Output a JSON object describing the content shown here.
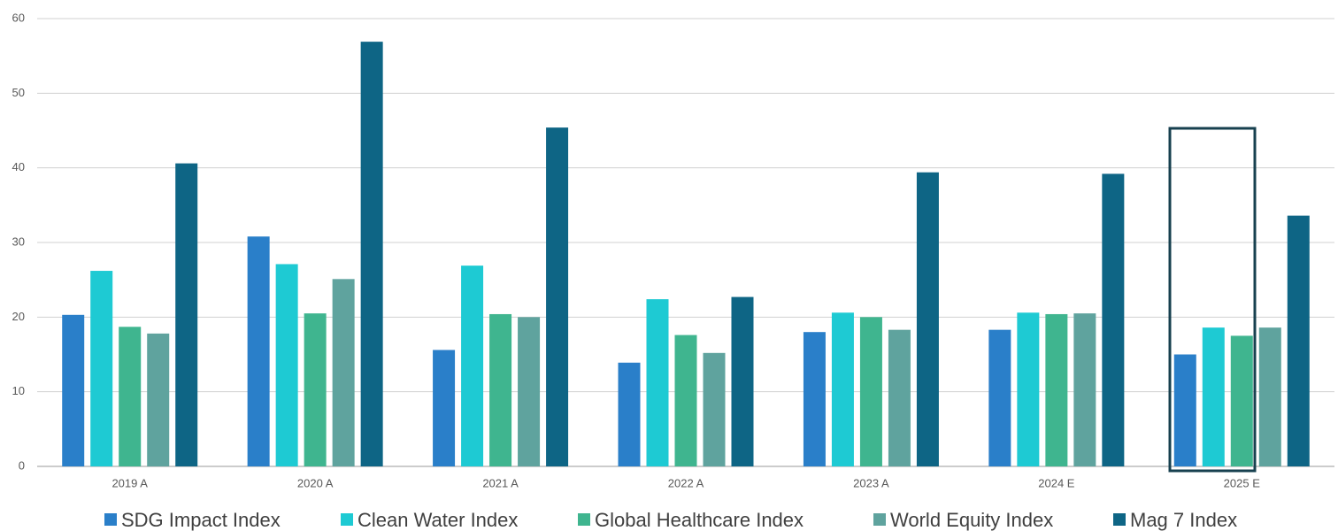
{
  "chart_data": {
    "type": "bar",
    "categories": [
      "2019 A",
      "2020 A",
      "2021 A",
      "2022 A",
      "2023 A",
      "2024 E",
      "2025 E"
    ],
    "series": [
      {
        "name": "SDG Impact Index",
        "color": "#2a7fc9",
        "values": [
          20.3,
          30.8,
          15.6,
          13.9,
          18.0,
          18.3,
          15.0
        ]
      },
      {
        "name": "Clean Water Index",
        "color": "#1ecad3",
        "values": [
          26.2,
          27.1,
          26.9,
          22.4,
          20.6,
          20.6,
          18.6
        ]
      },
      {
        "name": "Global Healthcare Index",
        "color": "#3fb58f",
        "values": [
          18.7,
          20.5,
          20.4,
          17.6,
          20.0,
          20.4,
          17.5
        ]
      },
      {
        "name": "World Equity Index",
        "color": "#5fa39e",
        "values": [
          17.8,
          25.1,
          20.0,
          15.2,
          18.3,
          20.5,
          18.6
        ]
      },
      {
        "name": "Mag 7 Index",
        "color": "#0e6585",
        "values": [
          40.6,
          56.9,
          45.4,
          22.7,
          39.4,
          39.2,
          33.6
        ]
      }
    ],
    "ylim": [
      0,
      60
    ],
    "yticks": [
      0,
      10,
      20,
      30,
      40,
      50,
      60
    ],
    "grid": true,
    "legend": "bottom"
  }
}
